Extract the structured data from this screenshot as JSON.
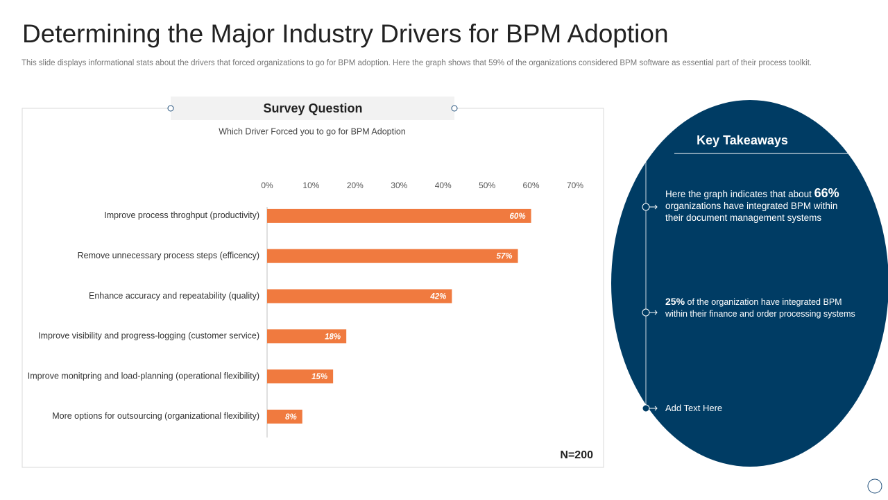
{
  "title": "Determining the Major Industry Drivers for BPM Adoption",
  "subtitle": "This slide displays informational stats about the drivers that forced organizations to go for BPM adoption. Here the graph shows that 59% of the organizations considered BPM software as essential part of their process toolkit.",
  "chart_data": {
    "type": "bar",
    "orientation": "horizontal",
    "title": "Survey Question",
    "subtitle": "Which Driver  Forced  you to go for BPM Adoption",
    "categories": [
      "Improve process throghput (productivity)",
      "Remove unnecessary process steps (efficency)",
      "Enhance accuracy and repeatability (quality)",
      "Improve visibility and progress-logging (customer service)",
      "Improve monitpring and load-planning (operational flexibility)",
      "More options for outsourcing (organizational flexibility)"
    ],
    "values": [
      60,
      57,
      42,
      18,
      15,
      8
    ],
    "value_labels": [
      "60%",
      "57%",
      "42%",
      "18%",
      "15%",
      "8%"
    ],
    "color": "#f07a3f",
    "xlim": [
      0,
      70
    ],
    "xticks": [
      {
        "value": 0,
        "label": "0%"
      },
      {
        "value": 10,
        "label": "10%"
      },
      {
        "value": 20,
        "label": "20%"
      },
      {
        "value": 30,
        "label": "30%"
      },
      {
        "value": 40,
        "label": "40%"
      },
      {
        "value": 50,
        "label": "50%"
      },
      {
        "value": 60,
        "label": "60%"
      },
      {
        "value": 70,
        "label": "70%"
      }
    ],
    "grid": false,
    "annotation": "N=200"
  },
  "takeaways": {
    "title": "Key Takeaways",
    "items": [
      {
        "before": "Here the graph indicates that about ",
        "highlight": "66%",
        "after": " organizations have integrated BPM within their document management systems"
      },
      {
        "highlight": "25%",
        "after": " of the organization have integrated BPM within their finance and order processing systems"
      },
      {
        "after": "Add Text Here"
      }
    ]
  }
}
